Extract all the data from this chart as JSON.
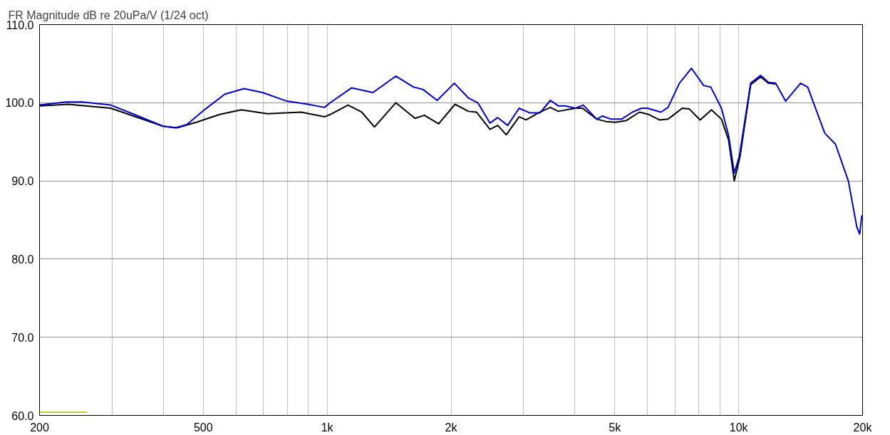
{
  "chart_data": {
    "type": "line",
    "title": "FR Magnitude dB re 20uPa/V (1/24 oct)",
    "log": "x",
    "grid": true,
    "xlim": [
      200,
      20000
    ],
    "ylim": [
      60,
      110
    ],
    "xticks": [
      200,
      {
        "value": 300,
        "label": null
      },
      {
        "value": 400,
        "label": null
      },
      500,
      {
        "value": 600,
        "label": null
      },
      {
        "value": 700,
        "label": null
      },
      {
        "value": 800,
        "label": null
      },
      {
        "value": 900,
        "label": null
      },
      {
        "value": 1000,
        "label": "1k"
      },
      {
        "value": 2000,
        "label": "2k"
      },
      {
        "value": 3000,
        "label": null
      },
      {
        "value": 4000,
        "label": null
      },
      {
        "value": 5000,
        "label": "5k"
      },
      {
        "value": 6000,
        "label": null
      },
      {
        "value": 7000,
        "label": null
      },
      {
        "value": 8000,
        "label": null
      },
      {
        "value": 9000,
        "label": null
      },
      {
        "value": 10000,
        "label": "10k"
      },
      {
        "value": 20000,
        "label": "20k"
      }
    ],
    "yticks": [
      {
        "value": 60,
        "label": "60.0"
      },
      {
        "value": 70,
        "label": "70.0"
      },
      {
        "value": 80,
        "label": "80.0"
      },
      {
        "value": 90,
        "label": "90.0"
      },
      {
        "value": 100,
        "label": "100.0"
      },
      {
        "value": 110,
        "label": "110.0"
      }
    ],
    "series": [
      {
        "color": "#c8c840",
        "x": [
          200,
          261
        ],
        "values": [
          60.4,
          60.4
        ]
      },
      {
        "color": "#000000",
        "x": [
          200,
          235,
          298,
          399,
          432,
          481,
          548,
          618,
          716,
          864,
          985,
          1017,
          1124,
          1213,
          1303,
          1468,
          1635,
          1722,
          1866,
          2045,
          2205,
          2305,
          2486,
          2597,
          2724,
          2927,
          3046,
          3287,
          3487,
          3643,
          4010,
          4173,
          4521,
          4759,
          5012,
          5322,
          5741,
          6047,
          6420,
          6734,
          7295,
          7589,
          8059,
          8588,
          9081,
          9453,
          9757,
          10074,
          10693,
          11310,
          11816,
          12296
        ],
        "values": [
          99.6,
          99.8,
          99.3,
          97.0,
          96.8,
          97.5,
          98.5,
          99.1,
          98.6,
          98.8,
          98.2,
          98.5,
          99.7,
          98.8,
          96.9,
          100.0,
          98.0,
          98.4,
          97.3,
          99.8,
          98.9,
          98.8,
          96.6,
          97.1,
          95.9,
          98.2,
          97.8,
          98.8,
          99.4,
          98.9,
          99.3,
          99.3,
          97.9,
          97.6,
          97.5,
          97.7,
          98.8,
          98.5,
          97.8,
          97.9,
          99.3,
          99.2,
          97.8,
          99.1,
          97.9,
          95.2,
          90.0,
          93.1,
          102.3,
          103.3,
          102.5,
          102.4
        ]
      },
      {
        "color": "#0000c8",
        "x": [
          200,
          232,
          254,
          298,
          340,
          399,
          427,
          456,
          506,
          564,
          628,
          697,
          798,
          899,
          985,
          1017,
          1147,
          1292,
          1468,
          1622,
          1709,
          1851,
          2037,
          2205,
          2323,
          2486,
          2597,
          2746,
          2927,
          3108,
          3287,
          3487,
          3643,
          3791,
          4010,
          4190,
          4521,
          4667,
          4894,
          5196,
          5516,
          5810,
          6000,
          6471,
          6734,
          7178,
          7680,
          8222,
          8556,
          9081,
          9453,
          9757,
          10032,
          10693,
          11310,
          11816,
          12296,
          13002,
          14140,
          14715,
          16190,
          17187,
          18470,
          19370,
          19680,
          19920
        ],
        "values": [
          99.7,
          100.1,
          100.1,
          99.7,
          98.5,
          97.0,
          96.8,
          97.2,
          99.2,
          101.1,
          101.8,
          101.3,
          100.2,
          99.8,
          99.4,
          100.0,
          101.9,
          101.3,
          103.4,
          102.0,
          101.7,
          100.3,
          102.5,
          100.6,
          100.0,
          97.4,
          98.1,
          97.1,
          99.3,
          98.7,
          98.7,
          100.3,
          99.6,
          99.6,
          99.3,
          99.7,
          97.9,
          98.3,
          97.9,
          97.9,
          98.8,
          99.3,
          99.3,
          98.8,
          99.4,
          102.5,
          104.4,
          102.2,
          102.0,
          99.3,
          95.8,
          91.0,
          93.1,
          102.5,
          103.5,
          102.6,
          102.5,
          100.2,
          102.5,
          102.0,
          96.1,
          94.7,
          90.0,
          84.1,
          83.2,
          85.6
        ]
      }
    ]
  }
}
